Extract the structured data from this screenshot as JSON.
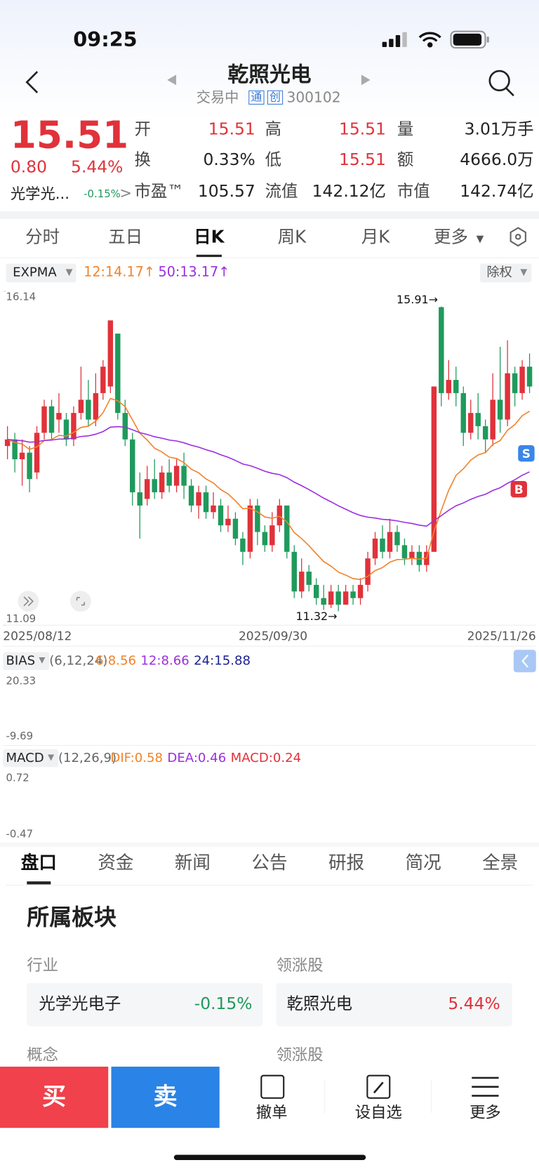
{
  "status_bar": {
    "time": "09:25"
  },
  "header": {
    "title": "乾照光电",
    "status": "交易中",
    "badges": [
      "通",
      "创"
    ],
    "code": "300102"
  },
  "quote": {
    "price": "15.51",
    "change": "0.80",
    "change_pct": "5.44%",
    "sector": "光学光...",
    "sector_change": "-0.15%",
    "fields": [
      {
        "label": "开",
        "value": "15.51"
      },
      {
        "label": "高",
        "value": "15.51"
      },
      {
        "label": "量",
        "value": "3.01万手"
      },
      {
        "label": "换",
        "value": "0.33%"
      },
      {
        "label": "低",
        "value": "15.51"
      },
      {
        "label": "额",
        "value": "4666.0万"
      },
      {
        "label": "市盈™",
        "value": "105.57"
      },
      {
        "label": "流值",
        "value": "142.12亿"
      },
      {
        "label": "市值",
        "value": "142.74亿"
      }
    ]
  },
  "tabs": [
    "分时",
    "五日",
    "日K",
    "周K",
    "月K",
    "更多"
  ],
  "chart_data": {
    "type": "candlestick",
    "indicator": "EXPMA",
    "ema": [
      {
        "label": "12:14.17↑",
        "color": "#f0832a"
      },
      {
        "label": "50:13.17↑",
        "color": "#9b2ee0"
      }
    ],
    "adjust": "除权",
    "categories": [
      "2025/08/12",
      null,
      null,
      null,
      null,
      null,
      null,
      null,
      null,
      null,
      null,
      null,
      null,
      null,
      null,
      null,
      null,
      null,
      null,
      null,
      null,
      null,
      null,
      null,
      null,
      null,
      null,
      null,
      null,
      null,
      null,
      null,
      null,
      null,
      null,
      null,
      "2025/09/30",
      null,
      null,
      null,
      null,
      null,
      null,
      null,
      null,
      null,
      null,
      null,
      null,
      null,
      null,
      null,
      null,
      null,
      null,
      null,
      null,
      null,
      null,
      null,
      null,
      null,
      null,
      null,
      null,
      null,
      null,
      null,
      null,
      null,
      null,
      "2025/11/26"
    ],
    "open": [
      13.8,
      13.9,
      13.6,
      13.7,
      13.4,
      14.0,
      14.4,
      14.2,
      14.2,
      13.9,
      14.3,
      14.5,
      14.2,
      14.6,
      14.7,
      15.5,
      14.3,
      13.9,
      13.1,
      13.0,
      13.3,
      13.1,
      13.4,
      13.2,
      13.5,
      13.2,
      12.9,
      13.1,
      12.8,
      12.9,
      12.6,
      12.7,
      12.4,
      12.2,
      12.9,
      12.5,
      12.3,
      12.6,
      12.9,
      12.2,
      11.6,
      11.9,
      11.7,
      11.5,
      11.4,
      11.6,
      11.4,
      11.6,
      11.5,
      11.7,
      12.1,
      12.4,
      12.2,
      12.5,
      12.3,
      12.1,
      12.2,
      12.0,
      12.2,
      15.9,
      14.6,
      14.8,
      14.6,
      14.0,
      14.3,
      14.1,
      13.9,
      14.5,
      14.2,
      14.9,
      14.6,
      15.0
    ],
    "close": [
      13.9,
      13.6,
      13.7,
      13.3,
      14.0,
      14.4,
      14.0,
      14.3,
      13.9,
      14.3,
      14.5,
      14.2,
      14.6,
      15.0,
      15.7,
      14.3,
      13.9,
      13.1,
      12.9,
      13.3,
      13.1,
      13.4,
      13.2,
      13.5,
      13.2,
      12.9,
      13.1,
      12.8,
      12.9,
      12.6,
      12.7,
      12.4,
      12.2,
      12.9,
      12.5,
      12.3,
      12.6,
      12.9,
      12.2,
      11.6,
      11.9,
      11.7,
      11.5,
      11.4,
      11.6,
      11.4,
      11.6,
      11.5,
      11.7,
      12.1,
      12.4,
      12.2,
      12.5,
      12.3,
      12.1,
      12.2,
      12.0,
      12.2,
      14.7,
      14.6,
      14.8,
      14.6,
      14.0,
      14.3,
      14.1,
      13.9,
      14.5,
      14.2,
      14.9,
      14.6,
      15.0,
      14.7
    ],
    "high": [
      14.1,
      14.0,
      13.9,
      13.8,
      14.1,
      14.5,
      14.5,
      14.6,
      14.3,
      14.4,
      15.0,
      14.8,
      14.9,
      15.1,
      15.7,
      15.5,
      14.5,
      14.0,
      13.4,
      13.5,
      13.6,
      13.5,
      13.6,
      13.6,
      13.7,
      13.3,
      13.2,
      13.2,
      13.1,
      13.0,
      12.9,
      12.8,
      12.5,
      13.0,
      13.0,
      12.6,
      12.8,
      13.0,
      12.9,
      12.3,
      12.1,
      12.0,
      11.8,
      11.7,
      11.7,
      11.7,
      11.7,
      11.7,
      11.8,
      12.2,
      12.5,
      12.6,
      12.7,
      12.6,
      12.4,
      12.3,
      12.3,
      12.3,
      14.7,
      15.91,
      15.1,
      15.0,
      14.7,
      14.5,
      14.6,
      14.2,
      14.9,
      15.3,
      15.4,
      15.0,
      15.1,
      15.2
    ],
    "low": [
      13.6,
      13.4,
      13.2,
      13.1,
      13.3,
      13.9,
      13.9,
      14.0,
      13.8,
      13.8,
      14.2,
      14.1,
      14.1,
      14.5,
      14.6,
      14.2,
      13.8,
      12.9,
      12.4,
      12.9,
      13.0,
      13.0,
      13.1,
      13.1,
      13.0,
      12.8,
      12.7,
      12.7,
      12.7,
      12.5,
      12.5,
      12.3,
      12.0,
      12.1,
      12.3,
      12.2,
      12.2,
      12.5,
      12.1,
      11.5,
      11.5,
      11.6,
      11.4,
      11.32,
      11.35,
      11.3,
      11.4,
      11.4,
      11.4,
      11.6,
      12.0,
      12.1,
      12.1,
      12.2,
      12.0,
      12.0,
      11.9,
      11.9,
      12.2,
      14.4,
      14.5,
      14.4,
      13.8,
      13.9,
      13.9,
      13.7,
      13.8,
      14.0,
      14.1,
      14.4,
      14.5,
      14.6
    ],
    "ylim": [
      11.09,
      16.14
    ],
    "yticks": [
      11.09,
      16.14
    ],
    "annotations": [
      "15.91→",
      "11.32→"
    ],
    "up_color": "#e0323a",
    "down_color": "#1f9a5c"
  },
  "bias": {
    "name": "BIAS",
    "params": "(6,12,24)",
    "values": [
      {
        "label": "6:8.56",
        "color": "#f0832a"
      },
      {
        "label": "12:8.66",
        "color": "#9b2ee0"
      },
      {
        "label": "24:15.88",
        "color": "#1b1f8f"
      }
    ],
    "yticks": [
      20.33,
      -9.69
    ]
  },
  "macd": {
    "name": "MACD",
    "params": "(12,26,9)",
    "values": [
      {
        "label": "DIF:0.58",
        "color": "#f0832a"
      },
      {
        "label": "DEA:0.46",
        "color": "#9b2ee0"
      },
      {
        "label": "MACD:0.24",
        "color": "#e0323a"
      }
    ],
    "yticks": [
      0.72,
      -0.47
    ]
  },
  "detail_tabs": [
    "盘口",
    "资金",
    "新闻",
    "公告",
    "研报",
    "简况",
    "全景"
  ],
  "sector": {
    "title": "所属板块",
    "industry_label": "行业",
    "leader_label": "领涨股",
    "industry": "光学光电子",
    "industry_change": "-0.15%",
    "leader": "乾照光电",
    "leader_change": "5.44%",
    "concept_label": "概念",
    "concept_leader_label": "领涨股"
  },
  "bottom_bar": {
    "buy": "买",
    "sell": "卖",
    "actions": [
      "撤单",
      "设自选",
      "更多"
    ]
  }
}
